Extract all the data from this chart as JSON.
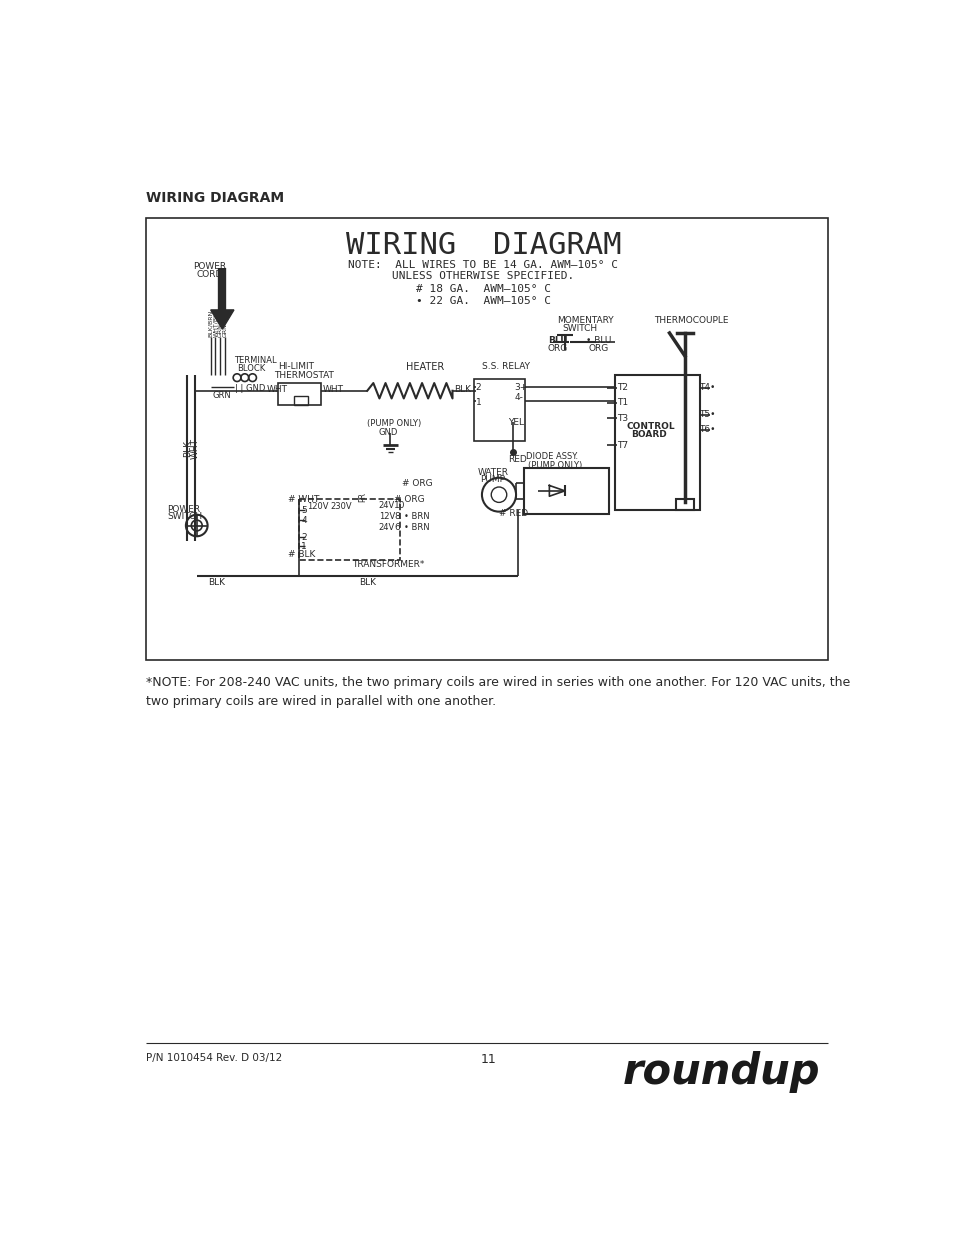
{
  "page_title": "WIRING DIAGRAM",
  "heading": "WIRING  DIAGRAM",
  "note_line1": "NOTE:  ALL WIRES TO BE 14 GA. AWM–105° C",
  "note_line2": "UNLESS OTHERWISE SPECIFIED.",
  "note_line3": "# 18 GA.  AWM–105° C",
  "note_line4": "• 22 GA.  AWM–105° C",
  "note_text": "*NOTE: For 208-240 VAC units, the two primary coils are wired in series with one another. For 120 VAC units, the\ntwo primary coils are wired in parallel with one another.",
  "footer_left": "P/N 1010454 Rev. D 03/12",
  "footer_center": "11",
  "footer_brand": "roundup",
  "bg_color": "#ffffff",
  "line_color": "#2a2a2a",
  "text_color": "#2a2a2a"
}
